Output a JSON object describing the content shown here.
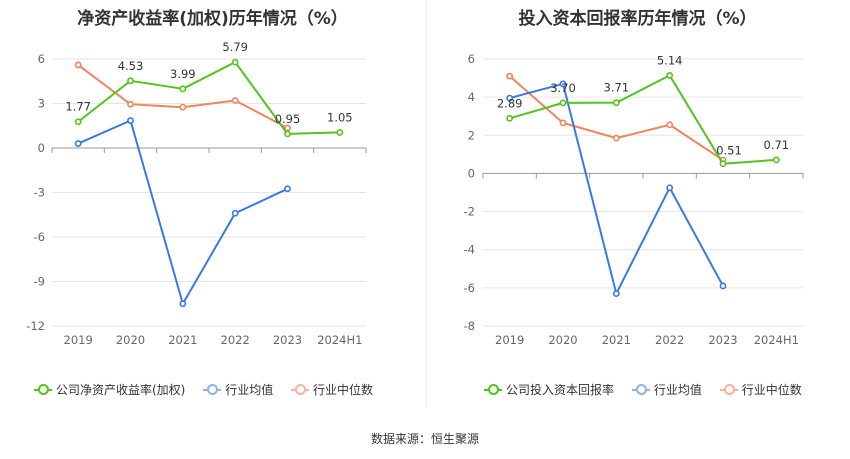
{
  "source_text": "数据来源：恒生聚源",
  "series_colors": {
    "company": "#52c41a",
    "avg": "#3b78e7",
    "median": "#f4825c"
  },
  "chart_data": [
    {
      "type": "line",
      "title": "净资产收益率(加权)历年情况（%）",
      "categories": [
        "2019",
        "2020",
        "2021",
        "2022",
        "2023",
        "2024H1"
      ],
      "ylim": [
        -12,
        6
      ],
      "yticks": [
        6,
        3,
        0,
        -3,
        -6,
        -9,
        -12
      ],
      "grid": true,
      "legend_position": "bottom",
      "series": [
        {
          "name": "公司净资产收益率(加权)",
          "key": "company",
          "values": [
            1.77,
            4.53,
            3.99,
            5.79,
            0.95,
            1.05
          ],
          "labels": [
            "1.77",
            "4.53",
            "3.99",
            "5.79",
            "0.95",
            "1.05"
          ]
        },
        {
          "name": "行业均值",
          "key": "avg",
          "values": [
            0.3,
            1.85,
            -10.5,
            -4.4,
            -2.75,
            null
          ]
        },
        {
          "name": "行业中位数",
          "key": "median",
          "values": [
            5.6,
            2.95,
            2.75,
            3.2,
            1.35,
            null
          ]
        }
      ]
    },
    {
      "type": "line",
      "title": "投入资本回报率历年情况（%）",
      "categories": [
        "2019",
        "2020",
        "2021",
        "2022",
        "2023",
        "2024H1"
      ],
      "ylim": [
        -8,
        6
      ],
      "yticks": [
        6,
        4,
        2,
        0,
        -2,
        -4,
        -6,
        -8
      ],
      "grid": true,
      "legend_position": "bottom",
      "series": [
        {
          "name": "公司投入资本回报率",
          "key": "company",
          "values": [
            2.89,
            3.7,
            3.71,
            5.14,
            0.51,
            0.71
          ],
          "labels": [
            "2.89",
            "3.70",
            "3.71",
            "5.14",
            "0.51",
            "0.71"
          ]
        },
        {
          "name": "行业均值",
          "key": "avg",
          "values": [
            3.95,
            4.7,
            -6.3,
            -0.75,
            -5.9,
            null
          ]
        },
        {
          "name": "行业中位数",
          "key": "median",
          "values": [
            5.1,
            2.65,
            1.85,
            2.55,
            0.7,
            null
          ]
        }
      ]
    }
  ]
}
